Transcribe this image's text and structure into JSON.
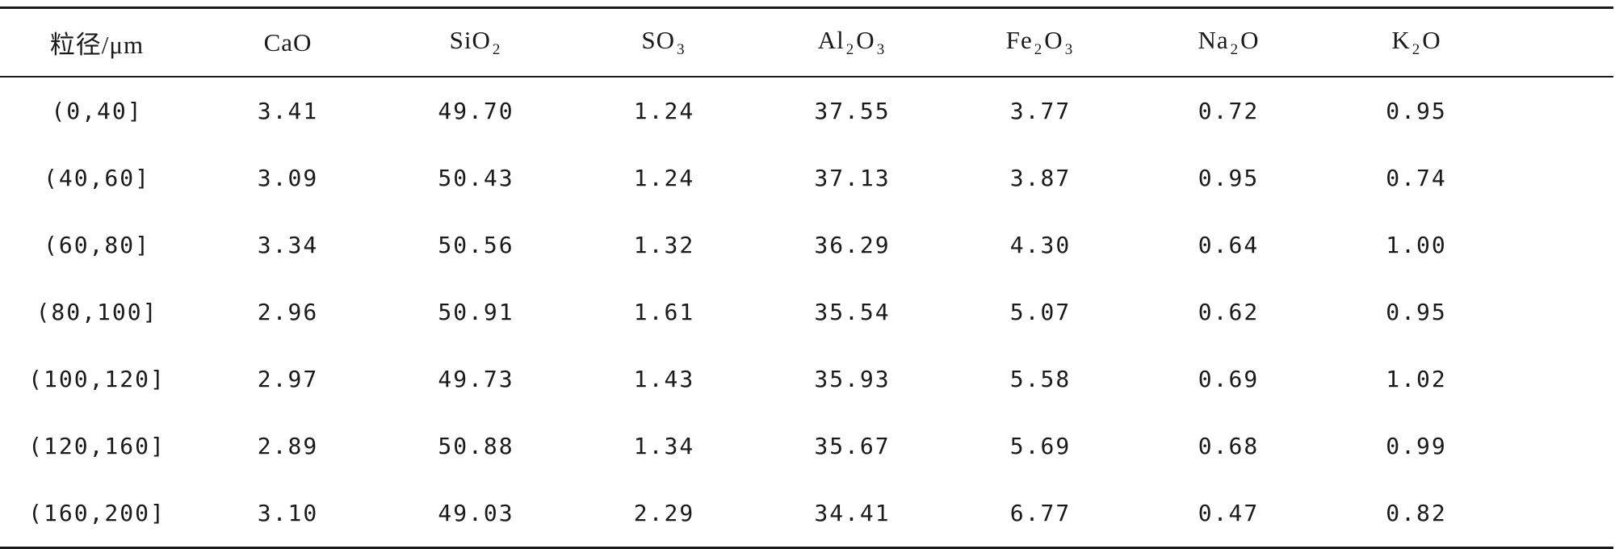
{
  "table": {
    "header": [
      {
        "main": "粒径/μm",
        "sub": "",
        "tail": ""
      },
      {
        "main": "CaO",
        "sub": "",
        "tail": ""
      },
      {
        "main": "SiO",
        "sub": "2",
        "tail": ""
      },
      {
        "main": "SO",
        "sub": "3",
        "tail": ""
      },
      {
        "main": "Al",
        "sub": "2",
        "tail": "O",
        "sub2": "3"
      },
      {
        "main": "Fe",
        "sub": "2",
        "tail": "O",
        "sub2": "3"
      },
      {
        "main": "Na",
        "sub": "2",
        "tail": "O",
        "sub2": ""
      },
      {
        "main": "K",
        "sub": "2",
        "tail": "O",
        "sub2": ""
      }
    ],
    "rows": [
      [
        "(0,40]",
        "3.41",
        "49.70",
        "1.24",
        "37.55",
        "3.77",
        "0.72",
        "0.95"
      ],
      [
        "(40,60]",
        "3.09",
        "50.43",
        "1.24",
        "37.13",
        "3.87",
        "0.95",
        "0.74"
      ],
      [
        "(60,80]",
        "3.34",
        "50.56",
        "1.32",
        "36.29",
        "4.30",
        "0.64",
        "1.00"
      ],
      [
        "(80,100]",
        "2.96",
        "50.91",
        "1.61",
        "35.54",
        "5.07",
        "0.62",
        "0.95"
      ],
      [
        "(100,120]",
        "2.97",
        "49.73",
        "1.43",
        "35.93",
        "5.58",
        "0.69",
        "1.02"
      ],
      [
        "(120,160]",
        "2.89",
        "50.88",
        "1.34",
        "35.67",
        "5.69",
        "0.68",
        "0.99"
      ],
      [
        "(160,200]",
        "3.10",
        "49.03",
        "2.29",
        "34.41",
        "6.77",
        "0.47",
        "0.82"
      ]
    ]
  }
}
